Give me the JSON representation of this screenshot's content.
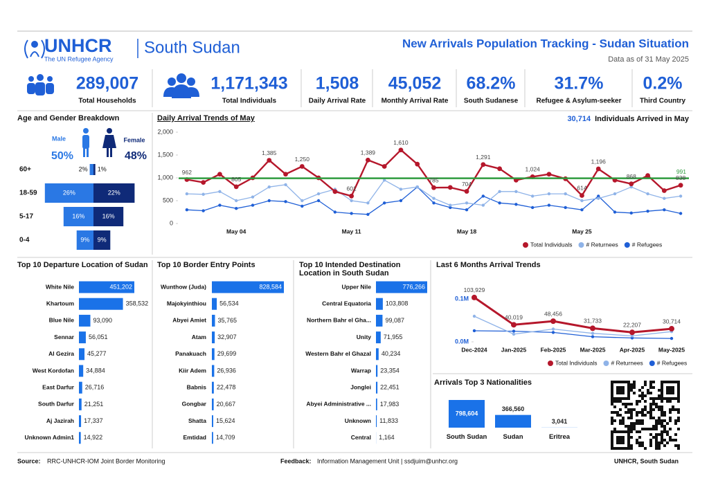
{
  "header": {
    "logo": "UNHCR",
    "tagline": "The UN Refugee Agency",
    "country": "South Sudan",
    "title": "New Arrivals Population Tracking - Sudan Situation",
    "date": "Data as of 31 May 2025"
  },
  "kpis": [
    {
      "value": "289,007",
      "label": "Total Households"
    },
    {
      "value": "1,171,343",
      "label": "Total Individuals"
    },
    {
      "value": "1,508",
      "label": "Daily Arrival Rate"
    },
    {
      "value": "45,052",
      "label": "Monthly Arrival Rate"
    },
    {
      "value": "68.2%",
      "label": "South Sudanese"
    },
    {
      "value": "31.7%",
      "label": "Refugee & Asylum-seeker"
    },
    {
      "value": "0.2%",
      "label": "Third Country"
    }
  ],
  "footer": {
    "source_label": "Source:",
    "source": "RRC-UNHCR-IOM Joint Border Monitoring",
    "feedback_label": "Feedback:",
    "feedback": "Information Management Unit | ssdjuim@unhcr.org",
    "org": "UNHCR, South Sudan"
  },
  "chart_data": [
    {
      "type": "pyramid",
      "title": "Age and Gender Breakdown",
      "categories": [
        "60+",
        "18-59",
        "5-17",
        "0-4"
      ],
      "series": [
        {
          "name": "Male",
          "total": "50%",
          "color": "#2a78e4",
          "values": [
            2,
            26,
            16,
            9
          ],
          "value_labels": [
            "2%",
            "26%",
            "16%",
            "9%"
          ]
        },
        {
          "name": "Female",
          "total": "48%",
          "color": "#0f2a78",
          "values": [
            1,
            22,
            16,
            9
          ],
          "value_labels": [
            "1%",
            "22%",
            "16%",
            "9%"
          ]
        }
      ]
    },
    {
      "type": "line",
      "title": "Daily Arrival Trends of May",
      "annotation_value": "30,714",
      "annotation_text": "Individuals Arrived in May",
      "categories": [
        null,
        null,
        null,
        "May 04",
        null,
        null,
        null,
        null,
        null,
        null,
        "May 11",
        null,
        null,
        null,
        null,
        null,
        null,
        "May 18",
        null,
        null,
        null,
        null,
        null,
        null,
        "May 25",
        null,
        null,
        null,
        null,
        null,
        null
      ],
      "series": [
        {
          "name": "Total Individuals",
          "color": "#b5172b",
          "values": [
            962,
            900,
            1080,
            805,
            1000,
            1385,
            1080,
            1250,
            1000,
            700,
            601,
            1389,
            1250,
            1610,
            1300,
            785,
            790,
            704,
            1291,
            1200,
            950,
            1024,
            1080,
            980,
            614,
            1196,
            950,
            868,
            1050,
            720,
            838
          ],
          "value_labels": [
            "962",
            null,
            null,
            "805",
            null,
            "1,385",
            null,
            "1,250",
            null,
            null,
            "601",
            "1,389",
            null,
            "1,610",
            null,
            "785",
            null,
            "704",
            "1,291",
            null,
            null,
            "1,024",
            null,
            null,
            "614",
            "1,196",
            null,
            "868",
            null,
            null,
            "838"
          ]
        },
        {
          "name": "# Returnees",
          "color": "#8fb3e8",
          "values": [
            650,
            640,
            700,
            500,
            580,
            800,
            850,
            500,
            650,
            750,
            500,
            450,
            950,
            750,
            800,
            550,
            400,
            450,
            400,
            700,
            700,
            600,
            650,
            650,
            500,
            550,
            650,
            800,
            650,
            550,
            600
          ]
        },
        {
          "name": "# Refugees",
          "color": "#1f5fd6",
          "values": [
            300,
            280,
            400,
            330,
            400,
            500,
            480,
            380,
            500,
            250,
            220,
            200,
            450,
            500,
            800,
            450,
            350,
            300,
            600,
            450,
            420,
            350,
            400,
            350,
            300,
            600,
            250,
            230,
            270,
            300,
            220
          ]
        }
      ],
      "reference_line": {
        "value": 991,
        "label": "991",
        "color": "#2e9b3e"
      },
      "ylim": [
        0,
        2000
      ],
      "yticks": [
        0,
        500,
        {
          "value": 1000,
          "label": "1,000"
        },
        {
          "value": 1500,
          "label": "1,500"
        },
        {
          "value": 2000,
          "label": "2,000"
        }
      ],
      "grid": false,
      "legend": "bottom-right"
    },
    {
      "type": "hbar",
      "title": "Top 10 Departure Location of Sudan",
      "color": "#1a72e8",
      "categories": [
        "White Nile",
        "Khartoum",
        "Blue Nile",
        "Sennar",
        "Al Gezira",
        "West Kordofan",
        "East Darfur",
        "South Darfur",
        "Aj Jazirah",
        "Unknown Admin1"
      ],
      "values": [
        451202,
        358532,
        93090,
        56051,
        45277,
        34884,
        26716,
        21251,
        17337,
        14922
      ],
      "value_labels": [
        "451,202",
        "358,532",
        "93,090",
        "56,051",
        "45,277",
        "34,884",
        "26,716",
        "21,251",
        "17,337",
        "14,922"
      ]
    },
    {
      "type": "hbar",
      "title": "Top 10 Border Entry Points",
      "color": "#1a72e8",
      "categories": [
        "Wunthow (Juda)",
        "Majokyinthiou",
        "Abyei Amiet",
        "Atam",
        "Panakuach",
        "Kiir Adem",
        "Babnis",
        "Gongbar",
        "Shatta",
        "Emtidad"
      ],
      "values": [
        828584,
        56534,
        35765,
        32907,
        29699,
        26936,
        22478,
        20667,
        15624,
        14709
      ],
      "value_labels": [
        "828,584",
        "56,534",
        "35,765",
        "32,907",
        "29,699",
        "26,936",
        "22,478",
        "20,667",
        "15,624",
        "14,709"
      ]
    },
    {
      "type": "hbar",
      "title": "Top 10 Intended Destination Location in South Sudan",
      "color": "#1a72e8",
      "categories": [
        "Upper Nile",
        "Central Equatoria",
        "Northern Bahr el Gha...",
        "Unity",
        "Western Bahr el Ghazal",
        "Warrap",
        "Jonglei",
        "Abyei Administrative ...",
        "Unknown",
        "Central"
      ],
      "values": [
        776266,
        103808,
        99087,
        71955,
        40234,
        23354,
        22451,
        17983,
        11833,
        1164
      ],
      "value_labels": [
        "776,266",
        "103,808",
        "99,087",
        "71,955",
        "40,234",
        "23,354",
        "22,451",
        "17,983",
        "11,833",
        "1,164"
      ]
    },
    {
      "type": "line",
      "title": "Last 6 Months Arrival Trends",
      "categories": [
        "Dec-2024",
        "Jan-2025",
        "Feb-2025",
        "Mar-2025",
        "Apr-2025",
        "May-2025"
      ],
      "series": [
        {
          "name": "Total Individuals",
          "color": "#b5172b",
          "values": [
            103929,
            40019,
            48456,
            31733,
            22207,
            30714
          ],
          "value_labels": [
            "103,929",
            "40,019",
            "48,456",
            "31,733",
            "22,207",
            "30,714"
          ]
        },
        {
          "name": "# Returnees",
          "color": "#8fb3e8",
          "values": [
            60000,
            18000,
            30000,
            20000,
            14000,
            24000
          ]
        },
        {
          "name": "# Refugees",
          "color": "#1f5fd6",
          "values": [
            26000,
            25000,
            22000,
            12000,
            9000,
            8000
          ]
        }
      ],
      "ylim": [
        0,
        120000
      ],
      "yticks": [
        {
          "value": 0,
          "label": "0.0M"
        },
        {
          "value": 100000,
          "label": "0.1M"
        }
      ],
      "grid": false,
      "legend": "bottom"
    },
    {
      "type": "bar",
      "title": "Arrivals Top 3 Nationalities",
      "color": "#1a72e8",
      "categories": [
        "South Sudan",
        "Sudan",
        "Eritrea"
      ],
      "values": [
        798604,
        366560,
        3041
      ],
      "value_labels": [
        "798,604",
        "366,560",
        "3,041"
      ]
    }
  ]
}
